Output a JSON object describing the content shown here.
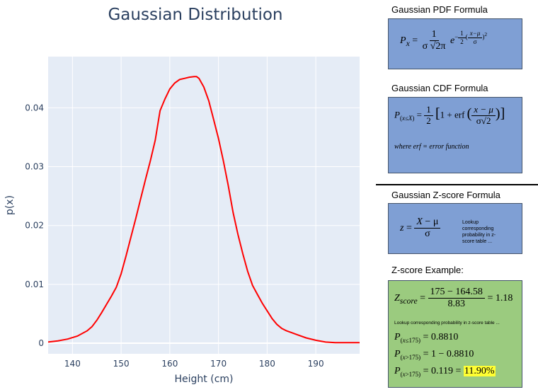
{
  "chart_data": {
    "type": "line",
    "title": "Gaussian Distribution",
    "xlabel": "Height (cm)",
    "ylabel": "p(x)",
    "xlim": [
      135,
      199
    ],
    "ylim": [
      -0.0018,
      0.0487
    ],
    "xticks": [
      140,
      150,
      160,
      170,
      180,
      190
    ],
    "yticks": [
      0,
      0.01,
      0.02,
      0.03,
      0.04
    ],
    "ytick_labels": [
      "0",
      "0.01",
      "0.02",
      "0.03",
      "0.04"
    ],
    "grid": true,
    "line_color": "#ff0000",
    "plot_bgcolor": "#e5ecf6",
    "series": [
      {
        "x": [
          135,
          137,
          139,
          141,
          143,
          144,
          145,
          146,
          147,
          148,
          149,
          150,
          151,
          152,
          153,
          154,
          155,
          156,
          157,
          158,
          159,
          160,
          161,
          162,
          163,
          164,
          165,
          165.5,
          166,
          167,
          168,
          169,
          170,
          171,
          172,
          173,
          174,
          175,
          176,
          177,
          178,
          179,
          180,
          181,
          182,
          183,
          184,
          185,
          186,
          188,
          190,
          192,
          194,
          196,
          199
        ],
        "y": [
          0.0002,
          0.0004,
          0.0007,
          0.0012,
          0.0021,
          0.0028,
          0.0039,
          0.0052,
          0.0066,
          0.008,
          0.0095,
          0.0118,
          0.0148,
          0.018,
          0.0212,
          0.0245,
          0.0278,
          0.031,
          0.0345,
          0.0395,
          0.0415,
          0.0432,
          0.0442,
          0.0448,
          0.045,
          0.0452,
          0.0453,
          0.0453,
          0.045,
          0.0435,
          0.0412,
          0.038,
          0.0348,
          0.031,
          0.0268,
          0.0222,
          0.0185,
          0.0152,
          0.0122,
          0.0098,
          0.0083,
          0.0068,
          0.0055,
          0.0042,
          0.0032,
          0.0025,
          0.0021,
          0.0018,
          0.0015,
          0.0009,
          0.0005,
          0.0002,
          0.0001,
          0.0001,
          0.0001
        ]
      }
    ]
  },
  "panels": {
    "pdf_title": "Gaussian PDF Formula",
    "cdf_title": "Gaussian CDF Formula",
    "cdf_note": "where erf = error function",
    "zscore_title": "Gaussian Z-score Formula",
    "zscore_note": "Lookup corresponding probability in z-score table ...",
    "example_title": "Z-score Example:",
    "example_numerator": "175 − 164.58",
    "example_denominator": "8.83",
    "example_result": "= 1.18",
    "example_note": "Lookup corresponding probability in z-score table ...",
    "p_le_175": "= 0.8810",
    "p_gt_175_calc": "= 1 − 0.8810",
    "p_gt_175_value": "= 0.119 =",
    "p_gt_175_percent": "11.90%"
  },
  "colors": {
    "box_blue": "#7f9fd4",
    "box_green": "#9bcb7f",
    "highlight": "#ffff33"
  }
}
